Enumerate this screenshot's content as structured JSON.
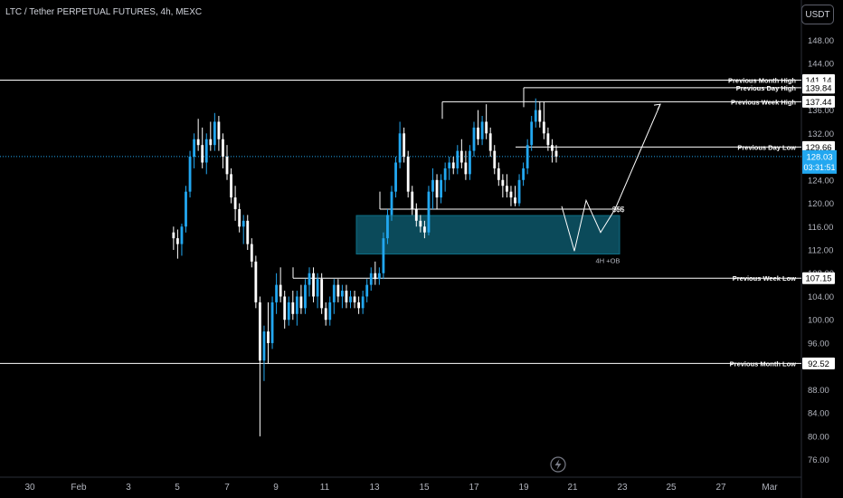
{
  "header": {
    "title": "LTC / Tether PERPETUAL FUTURES, 4h, MEXC",
    "currency_button": "USDT"
  },
  "colors": {
    "background": "#000000",
    "up": "#22a7f0",
    "down": "#ffffff",
    "level_line": "#ffffff",
    "current_price_line": "#22a7f0",
    "order_block": "#0b4a5a",
    "order_block_border": "#0e6f86",
    "axis_text": "#b2b5be"
  },
  "chart_data": {
    "type": "candlestick",
    "symbol": "LTC/USDT",
    "timeframe": "4h",
    "exchange": "MEXC",
    "ylim": [
      74,
      150
    ],
    "y_ticks": [
      "76.00",
      "80.00",
      "84.00",
      "88.00",
      "92.00",
      "96.00",
      "100.00",
      "104.00",
      "108.00",
      "112.00",
      "116.00",
      "120.00",
      "124.00",
      "128.00",
      "132.00",
      "136.00",
      "140.00",
      "144.00",
      "148.00"
    ],
    "x_ticks": [
      {
        "label": "30",
        "date": "Jan 30"
      },
      {
        "label": "Feb",
        "date": "Feb 1"
      },
      {
        "label": "3",
        "date": "Feb 3"
      },
      {
        "label": "5",
        "date": "Feb 5"
      },
      {
        "label": "7",
        "date": "Feb 7"
      },
      {
        "label": "9",
        "date": "Feb 9"
      },
      {
        "label": "11",
        "date": "Feb 11"
      },
      {
        "label": "13",
        "date": "Feb 13"
      },
      {
        "label": "15",
        "date": "Feb 15"
      },
      {
        "label": "17",
        "date": "Feb 17"
      },
      {
        "label": "19",
        "date": "Feb 19"
      },
      {
        "label": "21",
        "date": "Feb 21"
      },
      {
        "label": "23",
        "date": "Feb 23"
      },
      {
        "label": "25",
        "date": "Feb 25"
      },
      {
        "label": "27",
        "date": "Feb 27"
      },
      {
        "label": "Mar",
        "date": "Mar 1"
      }
    ],
    "current_price": {
      "value": "128.03",
      "countdown": "03:31:51"
    },
    "levels": [
      {
        "label": "Previous Month High",
        "value": "141.14"
      },
      {
        "label": "Previous Day High",
        "value": "139.84"
      },
      {
        "label": "Previous Week High",
        "value": "137.44"
      },
      {
        "label": "Previous Day Low",
        "value": "129.66"
      },
      {
        "label": "Previous Week Low",
        "value": "107.15"
      },
      {
        "label": "Previous Month Low",
        "value": "92.52"
      }
    ],
    "annotations": {
      "liquidity_label": "$$$",
      "liquidity_level": 119,
      "order_block_label": "4H +OB",
      "order_block_range": [
        111.3,
        117.9
      ]
    },
    "candles": [
      {
        "o": 115,
        "h": 116,
        "l": 112,
        "c": 114
      },
      {
        "o": 114,
        "h": 115.5,
        "l": 110.5,
        "c": 113
      },
      {
        "o": 113,
        "h": 116.5,
        "l": 111,
        "c": 116
      },
      {
        "o": 116,
        "h": 123,
        "l": 115,
        "c": 122
      },
      {
        "o": 122,
        "h": 129,
        "l": 121,
        "c": 128
      },
      {
        "o": 128,
        "h": 132,
        "l": 126,
        "c": 131
      },
      {
        "o": 131,
        "h": 134.5,
        "l": 129,
        "c": 130
      },
      {
        "o": 130,
        "h": 133,
        "l": 126,
        "c": 127
      },
      {
        "o": 127,
        "h": 132,
        "l": 125,
        "c": 131
      },
      {
        "o": 131,
        "h": 134,
        "l": 129,
        "c": 130
      },
      {
        "o": 130,
        "h": 135.5,
        "l": 129,
        "c": 134
      },
      {
        "o": 134,
        "h": 135,
        "l": 129,
        "c": 131
      },
      {
        "o": 131,
        "h": 132,
        "l": 126,
        "c": 128
      },
      {
        "o": 128,
        "h": 130,
        "l": 124,
        "c": 125
      },
      {
        "o": 125,
        "h": 126,
        "l": 120,
        "c": 121
      },
      {
        "o": 121,
        "h": 123,
        "l": 117,
        "c": 119
      },
      {
        "o": 119,
        "h": 120,
        "l": 115,
        "c": 116
      },
      {
        "o": 116,
        "h": 118,
        "l": 113,
        "c": 117
      },
      {
        "o": 117,
        "h": 118,
        "l": 112,
        "c": 113
      },
      {
        "o": 113,
        "h": 114,
        "l": 109,
        "c": 110
      },
      {
        "o": 110,
        "h": 111,
        "l": 102,
        "c": 103
      },
      {
        "o": 103,
        "h": 104,
        "l": 80,
        "c": 93
      },
      {
        "o": 93,
        "h": 99,
        "l": 89.5,
        "c": 98
      },
      {
        "o": 98,
        "h": 103,
        "l": 92.5,
        "c": 96
      },
      {
        "o": 96,
        "h": 104,
        "l": 95,
        "c": 103
      },
      {
        "o": 103,
        "h": 108,
        "l": 101,
        "c": 106
      },
      {
        "o": 106,
        "h": 109,
        "l": 103,
        "c": 104
      },
      {
        "o": 104,
        "h": 105,
        "l": 98.5,
        "c": 100
      },
      {
        "o": 100,
        "h": 104,
        "l": 99,
        "c": 103
      },
      {
        "o": 103,
        "h": 105,
        "l": 100,
        "c": 101
      },
      {
        "o": 101,
        "h": 105,
        "l": 99,
        "c": 104
      },
      {
        "o": 104,
        "h": 106,
        "l": 101,
        "c": 102
      },
      {
        "o": 102,
        "h": 107,
        "l": 101,
        "c": 106
      },
      {
        "o": 106,
        "h": 109,
        "l": 104,
        "c": 108
      },
      {
        "o": 108,
        "h": 109,
        "l": 103,
        "c": 104
      },
      {
        "o": 104,
        "h": 108,
        "l": 102,
        "c": 107
      },
      {
        "o": 107,
        "h": 108,
        "l": 101,
        "c": 102
      },
      {
        "o": 102,
        "h": 103,
        "l": 99,
        "c": 100
      },
      {
        "o": 100,
        "h": 104,
        "l": 99,
        "c": 103
      },
      {
        "o": 103,
        "h": 107,
        "l": 101,
        "c": 106
      },
      {
        "o": 106,
        "h": 107,
        "l": 103,
        "c": 104
      },
      {
        "o": 104,
        "h": 106,
        "l": 102,
        "c": 105
      },
      {
        "o": 105,
        "h": 106,
        "l": 102,
        "c": 103
      },
      {
        "o": 103,
        "h": 105,
        "l": 102,
        "c": 104
      },
      {
        "o": 104,
        "h": 105,
        "l": 102,
        "c": 103
      },
      {
        "o": 103,
        "h": 104,
        "l": 101,
        "c": 102
      },
      {
        "o": 102,
        "h": 105,
        "l": 101,
        "c": 104
      },
      {
        "o": 104,
        "h": 107,
        "l": 103,
        "c": 106
      },
      {
        "o": 106,
        "h": 109,
        "l": 105,
        "c": 108
      },
      {
        "o": 108,
        "h": 110,
        "l": 106,
        "c": 107
      },
      {
        "o": 107,
        "h": 109,
        "l": 106,
        "c": 108
      },
      {
        "o": 108,
        "h": 115,
        "l": 107,
        "c": 114
      },
      {
        "o": 114,
        "h": 119,
        "l": 113,
        "c": 118
      },
      {
        "o": 118,
        "h": 123,
        "l": 117,
        "c": 122
      },
      {
        "o": 122,
        "h": 128,
        "l": 121,
        "c": 127
      },
      {
        "o": 127,
        "h": 134,
        "l": 126,
        "c": 132
      },
      {
        "o": 132,
        "h": 133,
        "l": 127,
        "c": 128
      },
      {
        "o": 128,
        "h": 129,
        "l": 121,
        "c": 122
      },
      {
        "o": 122,
        "h": 123,
        "l": 118,
        "c": 119
      },
      {
        "o": 119,
        "h": 120,
        "l": 116,
        "c": 117
      },
      {
        "o": 117,
        "h": 118,
        "l": 115,
        "c": 116
      },
      {
        "o": 116,
        "h": 117,
        "l": 114,
        "c": 115
      },
      {
        "o": 115,
        "h": 123,
        "l": 114.5,
        "c": 122
      },
      {
        "o": 122,
        "h": 126,
        "l": 119,
        "c": 124
      },
      {
        "o": 124,
        "h": 125,
        "l": 119,
        "c": 121
      },
      {
        "o": 121,
        "h": 125,
        "l": 120,
        "c": 124
      },
      {
        "o": 124,
        "h": 127,
        "l": 122,
        "c": 126
      },
      {
        "o": 126,
        "h": 128,
        "l": 124,
        "c": 127
      },
      {
        "o": 127,
        "h": 128,
        "l": 125,
        "c": 126
      },
      {
        "o": 126,
        "h": 130,
        "l": 125,
        "c": 129
      },
      {
        "o": 129,
        "h": 131,
        "l": 126,
        "c": 127
      },
      {
        "o": 127,
        "h": 129,
        "l": 124,
        "c": 125
      },
      {
        "o": 125,
        "h": 130,
        "l": 124,
        "c": 129
      },
      {
        "o": 129,
        "h": 134,
        "l": 128,
        "c": 133
      },
      {
        "o": 133,
        "h": 136,
        "l": 130,
        "c": 131
      },
      {
        "o": 131,
        "h": 135,
        "l": 130,
        "c": 134
      },
      {
        "o": 134,
        "h": 137,
        "l": 131,
        "c": 132
      },
      {
        "o": 132,
        "h": 133,
        "l": 128,
        "c": 129
      },
      {
        "o": 129,
        "h": 130,
        "l": 125,
        "c": 126
      },
      {
        "o": 126,
        "h": 127,
        "l": 123,
        "c": 124
      },
      {
        "o": 124,
        "h": 125,
        "l": 121,
        "c": 123
      },
      {
        "o": 123,
        "h": 125,
        "l": 121,
        "c": 122
      },
      {
        "o": 122,
        "h": 123,
        "l": 119.5,
        "c": 121
      },
      {
        "o": 121,
        "h": 123,
        "l": 119.5,
        "c": 120
      },
      {
        "o": 120,
        "h": 125,
        "l": 119.5,
        "c": 124
      },
      {
        "o": 124,
        "h": 127,
        "l": 123,
        "c": 126
      },
      {
        "o": 126,
        "h": 131,
        "l": 125,
        "c": 130
      },
      {
        "o": 130,
        "h": 135,
        "l": 129,
        "c": 134
      },
      {
        "o": 134,
        "h": 138,
        "l": 133,
        "c": 136
      },
      {
        "o": 136,
        "h": 137.5,
        "l": 133,
        "c": 134
      },
      {
        "o": 134,
        "h": 137.4,
        "l": 131,
        "c": 132
      },
      {
        "o": 132,
        "h": 133,
        "l": 129,
        "c": 130
      },
      {
        "o": 130,
        "h": 131,
        "l": 127,
        "c": 129
      },
      {
        "o": 129,
        "h": 130,
        "l": 127,
        "c": 128.03
      }
    ]
  }
}
